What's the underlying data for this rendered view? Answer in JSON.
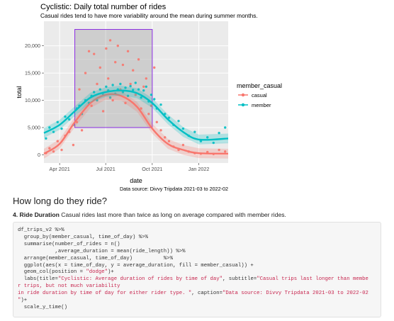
{
  "chart": {
    "title": "Cyclistic: Daily total number of rides",
    "subtitle": "Casual rides tend to have more variability around the mean during summer months.",
    "xlabel": "date",
    "ylabel": "total",
    "caption": "Data source: Divvy Tripdata 2021-03 to 2022-02",
    "legend_title": "member_casual",
    "x_ticks": [
      "Apr 2021",
      "Jul 2021",
      "Oct 2021",
      "Jan 2022"
    ],
    "y_ticks": [
      "0",
      "5,000",
      "10,000",
      "15,000",
      "20,000"
    ]
  },
  "chart_data": {
    "type": "scatter",
    "title": "Cyclistic: Daily total number of rides",
    "subtitle": "Casual rides tend to have more variability around the mean during summer months.",
    "xlabel": "date",
    "ylabel": "total",
    "x_range": [
      "2021-03-01",
      "2022-02-28"
    ],
    "ylim": [
      -1500,
      24500
    ],
    "x_ticks": [
      "Apr 2021",
      "Jul 2021",
      "Oct 2021",
      "Jan 2022"
    ],
    "y_ticks": [
      0,
      5000,
      10000,
      15000,
      20000
    ],
    "grid": true,
    "legend_position": "right",
    "legend_title": "member_casual",
    "highlight_box": {
      "x": [
        "2021-05-01",
        "2021-10-01"
      ],
      "y": [
        5000,
        23000
      ]
    },
    "series": [
      {
        "name": "casual",
        "color": "#F8766D",
        "smooth": [
          [
            "2021-03-01",
            200
          ],
          [
            "2021-04-01",
            2000
          ],
          [
            "2021-05-01",
            6000
          ],
          [
            "2021-06-01",
            9500
          ],
          [
            "2021-07-01",
            11000
          ],
          [
            "2021-08-01",
            10800
          ],
          [
            "2021-09-01",
            8800
          ],
          [
            "2021-10-01",
            4800
          ],
          [
            "2021-11-01",
            2000
          ],
          [
            "2021-12-01",
            900
          ],
          [
            "2022-01-01",
            300
          ],
          [
            "2022-02-28",
            200
          ]
        ],
        "points": [
          [
            "2021-03-05",
            300
          ],
          [
            "2021-03-12",
            1200
          ],
          [
            "2021-03-20",
            600
          ],
          [
            "2021-03-28",
            2500
          ],
          [
            "2021-04-05",
            900
          ],
          [
            "2021-04-12",
            3500
          ],
          [
            "2021-04-20",
            4200
          ],
          [
            "2021-04-28",
            1800
          ],
          [
            "2021-05-05",
            6000
          ],
          [
            "2021-05-10",
            12000
          ],
          [
            "2021-05-15",
            4500
          ],
          [
            "2021-05-22",
            15000
          ],
          [
            "2021-05-29",
            19000
          ],
          [
            "2021-06-03",
            9000
          ],
          [
            "2021-06-08",
            18500
          ],
          [
            "2021-06-14",
            13000
          ],
          [
            "2021-06-20",
            16000
          ],
          [
            "2021-06-26",
            8000
          ],
          [
            "2021-07-02",
            19500
          ],
          [
            "2021-07-06",
            14000
          ],
          [
            "2021-07-10",
            21000
          ],
          [
            "2021-07-15",
            10000
          ],
          [
            "2021-07-20",
            17000
          ],
          [
            "2021-07-25",
            20000
          ],
          [
            "2021-07-30",
            12000
          ],
          [
            "2021-08-04",
            16500
          ],
          [
            "2021-08-09",
            9500
          ],
          [
            "2021-08-14",
            19000
          ],
          [
            "2021-08-19",
            13000
          ],
          [
            "2021-08-24",
            15500
          ],
          [
            "2021-08-29",
            11000
          ],
          [
            "2021-09-04",
            17500
          ],
          [
            "2021-09-09",
            8500
          ],
          [
            "2021-09-14",
            12500
          ],
          [
            "2021-09-19",
            14000
          ],
          [
            "2021-09-24",
            7500
          ],
          [
            "2021-09-29",
            9000
          ],
          [
            "2021-10-05",
            16000
          ],
          [
            "2021-10-10",
            6000
          ],
          [
            "2021-10-18",
            4500
          ],
          [
            "2021-10-26",
            3200
          ],
          [
            "2021-11-03",
            2500
          ],
          [
            "2021-11-12",
            1500
          ],
          [
            "2021-11-22",
            900
          ],
          [
            "2021-12-01",
            1800
          ],
          [
            "2021-12-12",
            600
          ],
          [
            "2021-12-24",
            300
          ],
          [
            "2022-01-05",
            200
          ],
          [
            "2022-01-18",
            500
          ],
          [
            "2022-01-30",
            150
          ],
          [
            "2022-02-10",
            900
          ],
          [
            "2022-02-22",
            600
          ]
        ]
      },
      {
        "name": "member",
        "color": "#00BFC4",
        "smooth": [
          [
            "2021-03-01",
            4000
          ],
          [
            "2021-04-01",
            5500
          ],
          [
            "2021-05-01",
            8000
          ],
          [
            "2021-06-01",
            10500
          ],
          [
            "2021-07-01",
            11500
          ],
          [
            "2021-08-01",
            11800
          ],
          [
            "2021-09-01",
            11300
          ],
          [
            "2021-10-01",
            9500
          ],
          [
            "2021-11-01",
            6500
          ],
          [
            "2021-12-01",
            4200
          ],
          [
            "2022-01-01",
            2800
          ],
          [
            "2022-02-28",
            3000
          ]
        ],
        "points": [
          [
            "2021-03-05",
            3000
          ],
          [
            "2021-03-12",
            5000
          ],
          [
            "2021-03-20",
            4200
          ],
          [
            "2021-03-28",
            6000
          ],
          [
            "2021-04-05",
            4800
          ],
          [
            "2021-04-12",
            7000
          ],
          [
            "2021-04-20",
            6500
          ],
          [
            "2021-04-28",
            5500
          ],
          [
            "2021-05-05",
            8500
          ],
          [
            "2021-05-10",
            9000
          ],
          [
            "2021-05-15",
            7500
          ],
          [
            "2021-05-22",
            10000
          ],
          [
            "2021-05-29",
            9500
          ],
          [
            "2021-06-03",
            10800
          ],
          [
            "2021-06-08",
            11500
          ],
          [
            "2021-06-14",
            10000
          ],
          [
            "2021-06-20",
            12000
          ],
          [
            "2021-06-26",
            11000
          ],
          [
            "2021-07-02",
            12500
          ],
          [
            "2021-07-06",
            11800
          ],
          [
            "2021-07-10",
            10500
          ],
          [
            "2021-07-15",
            12800
          ],
          [
            "2021-07-20",
            11200
          ],
          [
            "2021-07-25",
            12000
          ],
          [
            "2021-07-30",
            13000
          ],
          [
            "2021-08-04",
            11500
          ],
          [
            "2021-08-09",
            12300
          ],
          [
            "2021-08-14",
            10800
          ],
          [
            "2021-08-19",
            12600
          ],
          [
            "2021-08-24",
            11900
          ],
          [
            "2021-08-29",
            13200
          ],
          [
            "2021-09-04",
            12000
          ],
          [
            "2021-09-09",
            10500
          ],
          [
            "2021-09-14",
            11800
          ],
          [
            "2021-09-19",
            12500
          ],
          [
            "2021-09-24",
            9800
          ],
          [
            "2021-09-29",
            11000
          ],
          [
            "2021-10-05",
            10200
          ],
          [
            "2021-10-10",
            8500
          ],
          [
            "2021-10-18",
            9200
          ],
          [
            "2021-10-26",
            7500
          ],
          [
            "2021-11-03",
            6800
          ],
          [
            "2021-11-12",
            5500
          ],
          [
            "2021-11-22",
            6200
          ],
          [
            "2021-12-01",
            4800
          ],
          [
            "2021-12-12",
            3500
          ],
          [
            "2021-12-24",
            4200
          ],
          [
            "2022-01-05",
            2500
          ],
          [
            "2022-01-18",
            3200
          ],
          [
            "2022-01-30",
            2200
          ],
          [
            "2022-02-10",
            4000
          ],
          [
            "2022-02-22",
            5000
          ]
        ]
      }
    ]
  },
  "section": {
    "heading": "How long do they ride?",
    "para_bold": "4. Ride Duration",
    "para_text": " Casual rides last more than twice as long on average compared with member rides."
  },
  "code": {
    "l1": "df_trips_v2 %>%",
    "l2": "  group_by(member_casual, time_of_day) %>%",
    "l3": "  summarise(number_of_rides = n()",
    "l4": "            ,average_duration = mean(ride_length)) %>%",
    "l5": "  arrange(member_casual, time_of_day)          %>%",
    "l6": "  ggplot(aes(x = time_of_day, y = average_duration, fill = member_casual)) +",
    "l7": "  geom_col(position = ",
    "l7s": "\"dodge\"",
    "l7e": ")+",
    "l8a": "  labs(title=",
    "l8s1": "\"Cyclistic: Average duration of rides by time of day\"",
    "l8b": ", subtitle=",
    "l8s2": "\"Casual trips last longer than membe",
    "l9s": "r trips, but not much variability",
    "l10s": "in ride duration by time of day for either rider type. \"",
    "l10b": ", caption=",
    "l10s2": "\"Data source: Divvy Tripdata 2021-03 to 2022-02",
    "l11s": "\"",
    "l11e": ")+",
    "l12": "  scale_y_time()"
  }
}
